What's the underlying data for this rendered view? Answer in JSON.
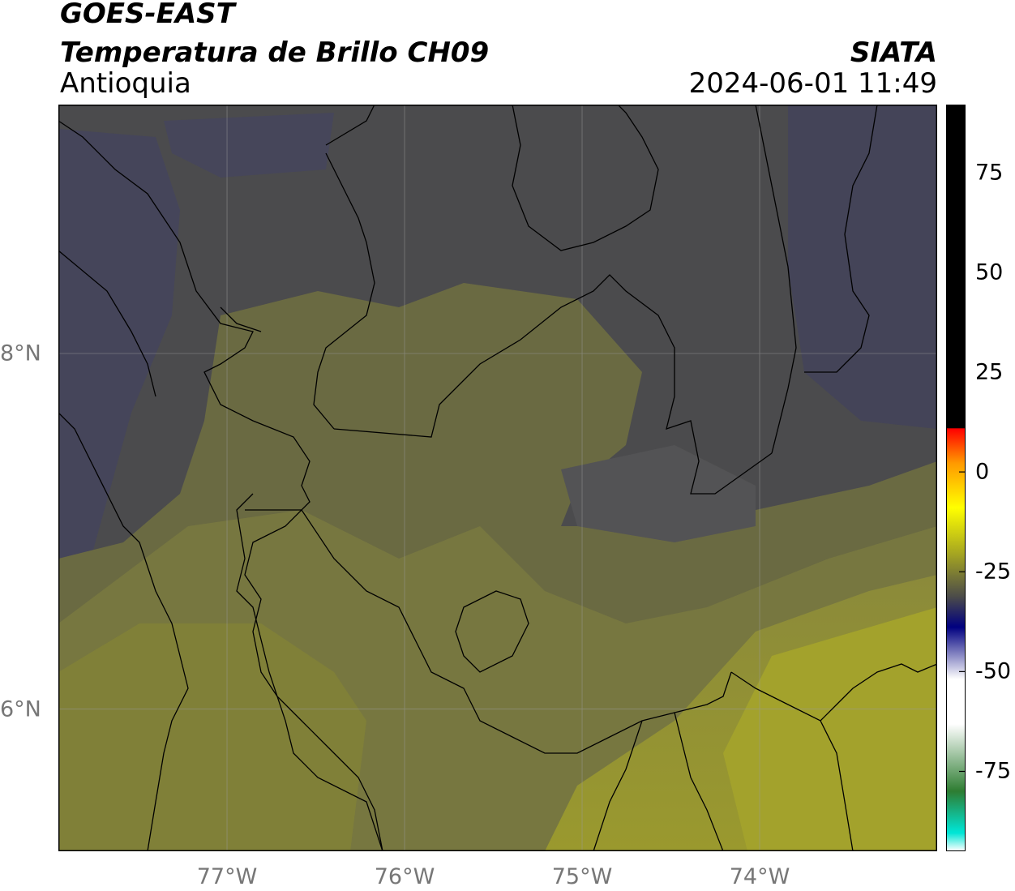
{
  "header": {
    "satellite": "GOES-EAST",
    "product": "Temperatura de Brillo CH09",
    "region": "Antioquia",
    "agency": "SIATA",
    "datetime": "2024-06-01 11:49"
  },
  "map": {
    "x_ticks": [
      "77°W",
      "76°W",
      "75°W",
      "74°W"
    ],
    "y_ticks": [
      "8°N",
      "6°N"
    ],
    "lon_range": [
      -77.95,
      -73.0
    ],
    "lat_range": [
      5.2,
      9.4
    ],
    "gridlines": true
  },
  "colorbar": {
    "ticks": [
      "75",
      "50",
      "25",
      "0",
      "-25",
      "-50",
      "-75"
    ],
    "tick_values": [
      75,
      50,
      25,
      0,
      -25,
      -50,
      -75
    ],
    "range": [
      -95,
      92
    ],
    "colors": {
      "warm_black": "#000000",
      "red": "#ff0000",
      "orange": "#ff9900",
      "yellow": "#ffff00",
      "olive": "#a8a820",
      "dark_gray": "#4a4a4a",
      "navy": "#000080",
      "white": "#ffffff",
      "green": "#2e7d32",
      "cyan": "#00e5d5"
    }
  }
}
